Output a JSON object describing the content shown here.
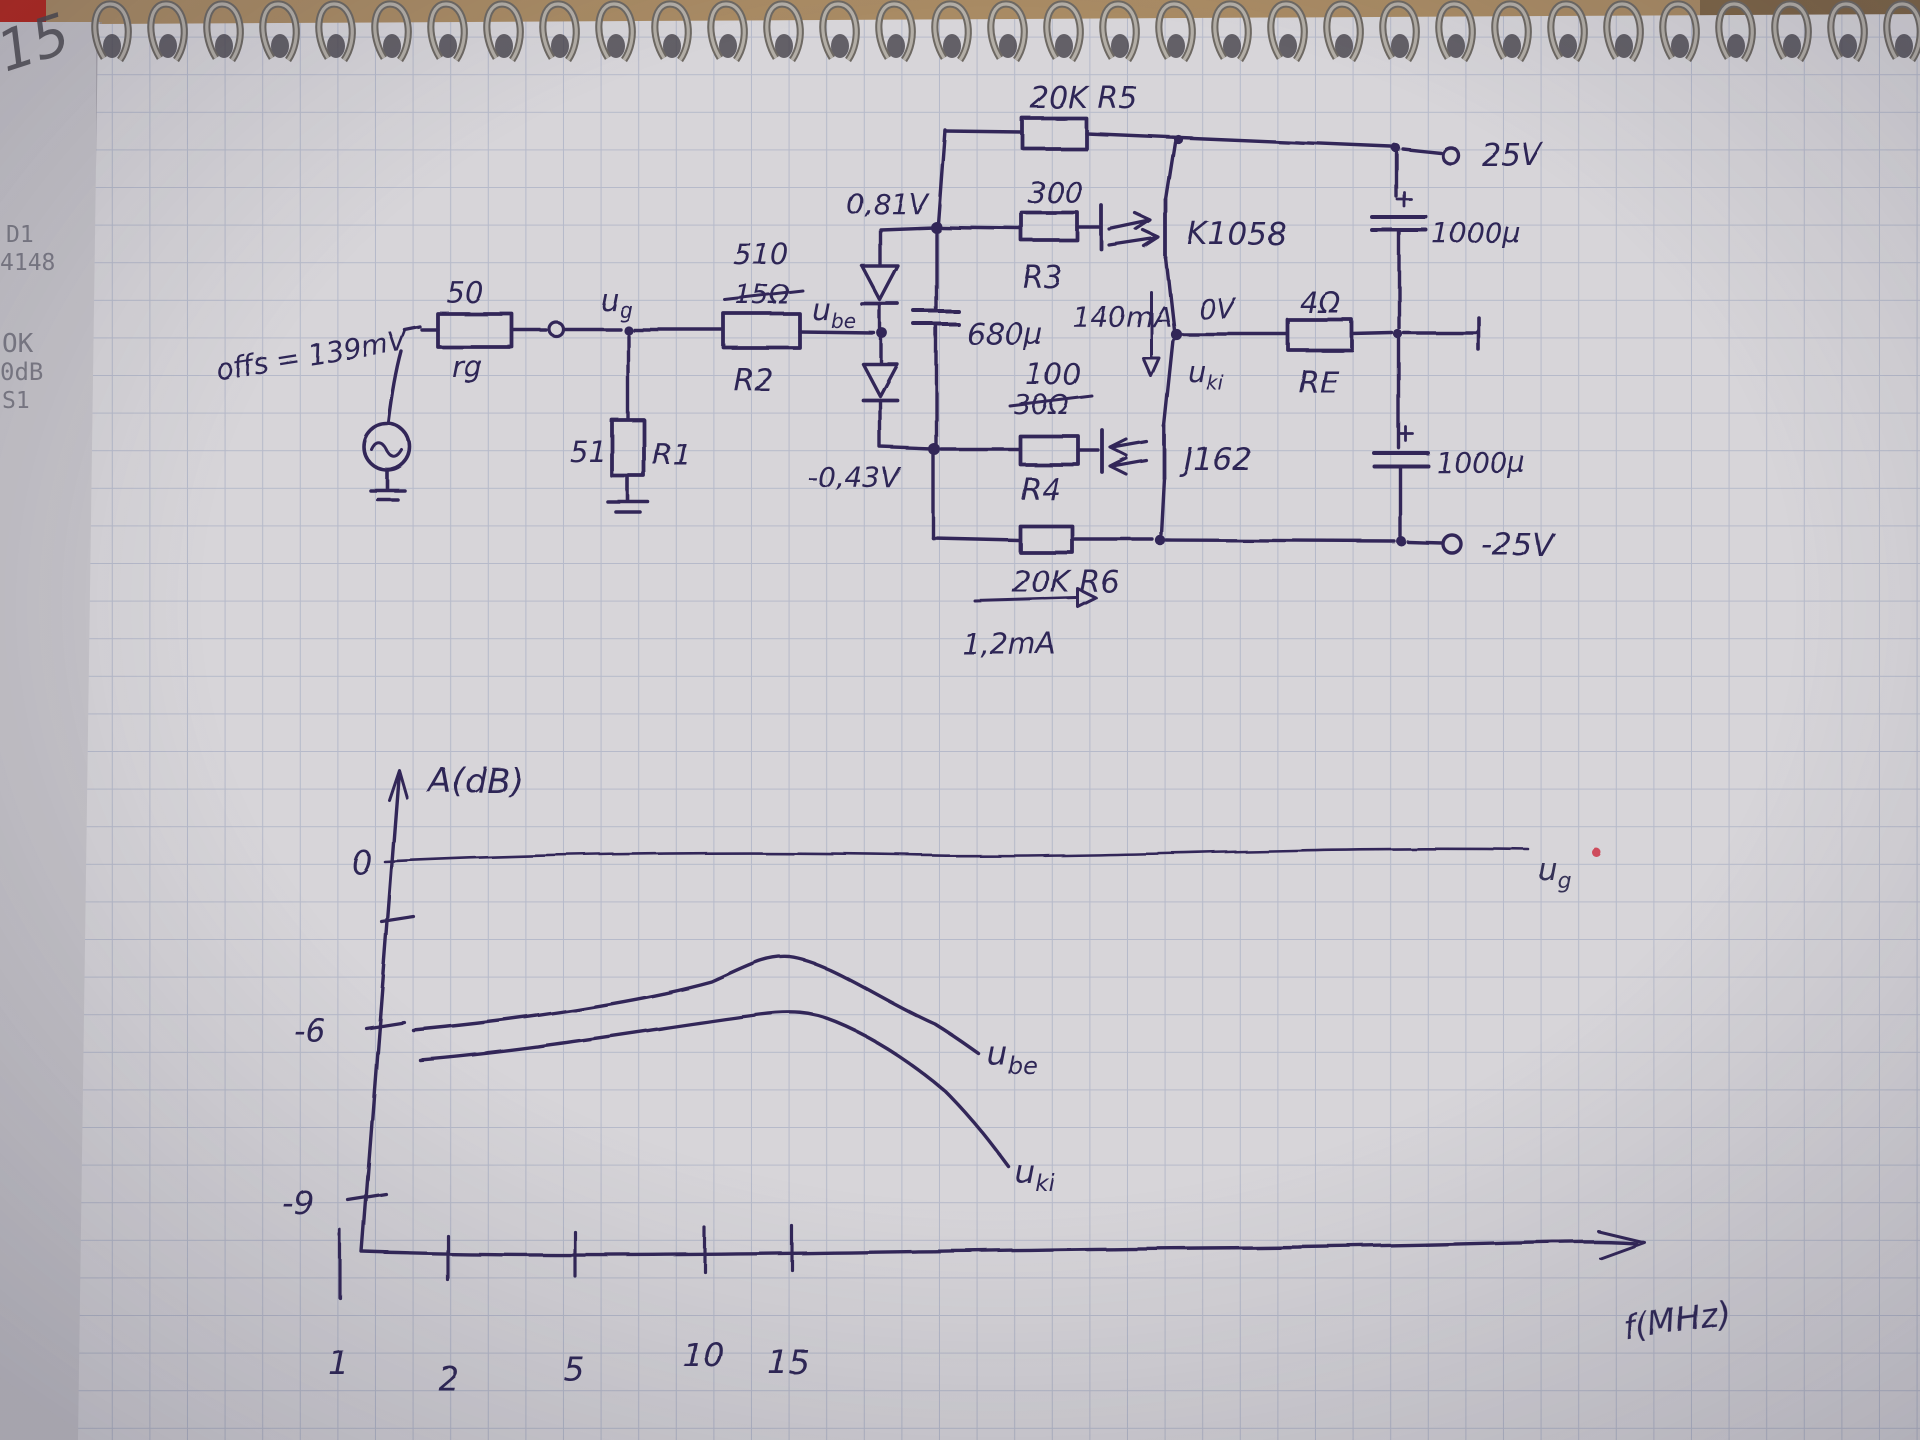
{
  "photo": {
    "corner_note": "15",
    "under_sheet": {
      "line1": "D1",
      "line2": "4148",
      "line3": "OK",
      "line4": "0dB",
      "line5": "S1"
    }
  },
  "schematic": {
    "source": {
      "offset_label": "offs = 139mV"
    },
    "rg": {
      "value": "50",
      "name": "rg"
    },
    "node_ug": {
      "main": "u",
      "sub": "g"
    },
    "r1": {
      "value": "51",
      "name": "R1"
    },
    "r2": {
      "value_new": "510",
      "value_old": "15Ω",
      "name": "R2"
    },
    "node_ube": {
      "main": "u",
      "sub": "be"
    },
    "bias": {
      "v_upper": "0,81V",
      "v_lower": "-0,43V",
      "cap": "680μ",
      "current": "1,2mA"
    },
    "r3": {
      "value": "300",
      "name": "R3"
    },
    "r4": {
      "value_new": "100",
      "value_old": "30Ω",
      "name": "R4"
    },
    "r5": {
      "label": "20K R5"
    },
    "r6": {
      "label": "20K R6"
    },
    "re": {
      "value": "4Ω",
      "name": "RE"
    },
    "q_upper": "K1058",
    "q_lower": "J162",
    "rails": {
      "positive": "25V",
      "negative": "-25V",
      "cap_top": "1000μ",
      "cap_bottom": "1000μ"
    },
    "output": {
      "voltage": "0V",
      "current": "140mA",
      "node_main": "u",
      "node_sub": "ki"
    }
  },
  "graph": {
    "y_axis_label": "A(dB)",
    "y_ticks": [
      "0",
      "-6",
      "-9"
    ],
    "x_ticks": [
      "1",
      "2",
      "5",
      "10",
      "15"
    ],
    "x_axis_label": "f(MHz)",
    "curves": {
      "ug": {
        "main": "u",
        "sub": "g"
      },
      "ube": {
        "main": "u",
        "sub": "be"
      },
      "uki": {
        "main": "u",
        "sub": "ki"
      }
    }
  },
  "chart_data": {
    "type": "line",
    "title": "Amplifier frequency response (hand sketch)",
    "xlabel": "f(MHz)",
    "ylabel": "A(dB)",
    "x_ticks": [
      1,
      2,
      5,
      10,
      15
    ],
    "y_ticks": [
      0,
      -6,
      -9
    ],
    "ylim": [
      -12,
      2
    ],
    "grid": "graph-paper",
    "legend_position": "labels at curve ends",
    "series": [
      {
        "name": "ug",
        "x": [
          1,
          2,
          5,
          10,
          15
        ],
        "y": [
          0,
          0,
          0,
          0,
          0
        ]
      },
      {
        "name": "ube",
        "x": [
          1,
          2,
          5,
          7,
          10,
          12
        ],
        "y": [
          -6,
          -5.7,
          -4.3,
          -3.4,
          -5.6,
          -7
        ]
      },
      {
        "name": "uki",
        "x": [
          1,
          2,
          5,
          7,
          10,
          13
        ],
        "y": [
          -6.8,
          -6.4,
          -5.8,
          -5.5,
          -8,
          -11
        ]
      }
    ]
  }
}
